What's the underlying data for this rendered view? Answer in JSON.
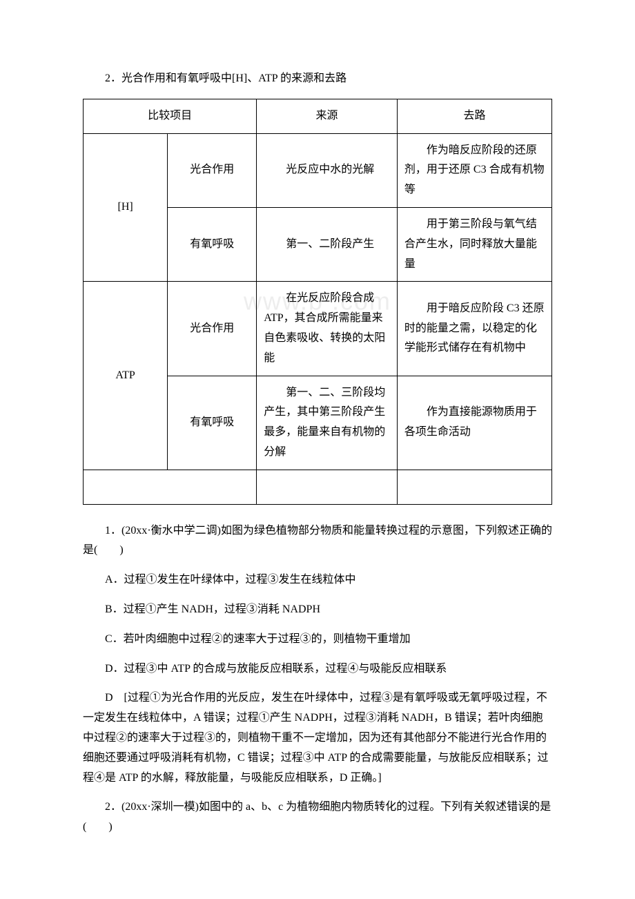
{
  "heading": "2．光合作用和有氧呼吸中[H]、ATP 的来源和去路",
  "table": {
    "columns": [
      "比较项目",
      "",
      "来源",
      "去路"
    ],
    "groups": [
      {
        "label": "[H]",
        "rows": [
          {
            "sub": "光合作用",
            "source": "光反应中水的光解",
            "dest": "作为暗反应阶段的还原剂，用于还原 C3 合成有机物等"
          },
          {
            "sub": "有氧呼吸",
            "source": "第一、二阶段产生",
            "dest": "用于第三阶段与氧气结合产生水，同时释放大量能量"
          }
        ]
      },
      {
        "label": "ATP",
        "rows": [
          {
            "sub": "光合作用",
            "source": "在光反应阶段合成 ATP，其合成所需能量来自色素吸收、转换的太阳能",
            "dest": "用于暗反应阶段 C3 还原时的能量之需，以稳定的化学能形式储存在有机物中"
          },
          {
            "sub": "有氧呼吸",
            "source": "第一、二、三阶段均产生，其中第三阶段产生最多，能量来自有机物的分解",
            "dest": "作为直接能源物质用于各项生命活动"
          }
        ]
      }
    ],
    "col_widths": [
      "18%",
      "19%",
      "30%",
      "33%"
    ]
  },
  "watermark": "www.b    .com",
  "q1": {
    "stem": "1．(20xx·衡水中学二调)如图为绿色植物部分物质和能量转换过程的示意图，下列叙述正确的是(　　)",
    "options": {
      "A": "A．过程①发生在叶绿体中，过程③发生在线粒体中",
      "B": "B．过程①产生 NADH，过程③消耗 NADPH",
      "C": "C．若叶肉细胞中过程②的速率大于过程③的，则植物干重增加",
      "D": "D．过程③中 ATP 的合成与放能反应相联系，过程④与吸能反应相联系"
    },
    "answer": "D　[过程①为光合作用的光反应，发生在叶绿体中，过程③是有氧呼吸或无氧呼吸过程，不一定发生在线粒体中，A 错误；过程①产生 NADPH，过程③消耗 NADH，B 错误；若叶肉细胞中过程②的速率大于过程③的，则植物干重不一定增加，因为还有其他部分不能进行光合作用的细胞还要通过呼吸消耗有机物，C 错误；过程③中 ATP 的合成需要能量，与放能反应相联系；过程④是 ATP 的水解，释放能量，与吸能反应相联系，D 正确。]"
  },
  "q2": {
    "stem": "2．(20xx·深圳一模)如图中的 a、b、c 为植物细胞内物质转化的过程。下列有关叙述错误的是(　　)"
  }
}
